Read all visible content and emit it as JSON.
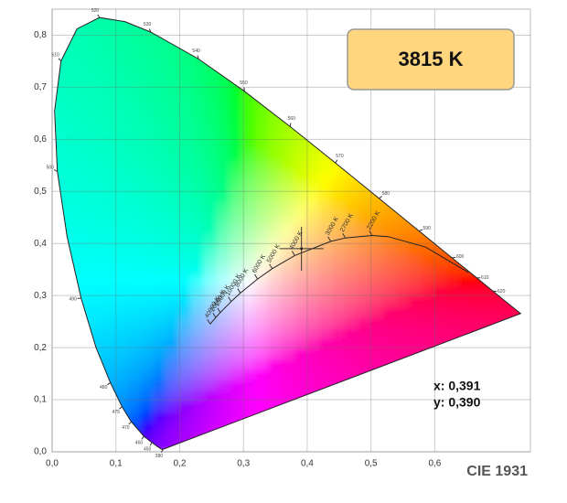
{
  "chart_data": {
    "type": "chromaticity",
    "title": "CIE 1931",
    "xlim": [
      0,
      0.75
    ],
    "ylim": [
      0,
      0.85
    ],
    "xticks": [
      {
        "value": 0,
        "label": "0,0"
      },
      {
        "value": 0.1,
        "label": "0,1"
      },
      {
        "value": 0.2,
        "label": "0,2"
      },
      {
        "value": 0.3,
        "label": "0,3"
      },
      {
        "value": 0.4,
        "label": "0,4"
      },
      {
        "value": 0.5,
        "label": "0,5"
      },
      {
        "value": 0.6,
        "label": "0,6"
      }
    ],
    "yticks": [
      {
        "value": 0,
        "label": "0,0"
      },
      {
        "value": 0.1,
        "label": "0,1"
      },
      {
        "value": 0.2,
        "label": "0,2"
      },
      {
        "value": 0.3,
        "label": "0,3"
      },
      {
        "value": 0.4,
        "label": "0,4"
      },
      {
        "value": 0.5,
        "label": "0,5"
      },
      {
        "value": 0.6,
        "label": "0,6"
      },
      {
        "value": 0.7,
        "label": "0,7"
      },
      {
        "value": 0.8,
        "label": "0,8"
      }
    ],
    "grid": true,
    "spectral_locus": {
      "x": [
        0.1741,
        0.1714,
        0.1644,
        0.1566,
        0.144,
        0.1241,
        0.1096,
        0.0913,
        0.0687,
        0.0454,
        0.0235,
        0.0082,
        0.0039,
        0.0139,
        0.0389,
        0.0743,
        0.1142,
        0.1547,
        0.2296,
        0.3016,
        0.3731,
        0.4441,
        0.5125,
        0.5752,
        0.627,
        0.6658,
        0.6915,
        0.719,
        0.7347
      ],
      "y": [
        0.005,
        0.0051,
        0.0109,
        0.0177,
        0.0297,
        0.0578,
        0.0868,
        0.1327,
        0.2007,
        0.295,
        0.4127,
        0.5384,
        0.6548,
        0.7502,
        0.812,
        0.8338,
        0.8262,
        0.8059,
        0.7543,
        0.6923,
        0.6245,
        0.5547,
        0.4866,
        0.4242,
        0.3725,
        0.334,
        0.3083,
        0.2809,
        0.2653
      ],
      "labels": [
        380,
        null,
        null,
        450,
        460,
        470,
        475,
        480,
        null,
        490,
        null,
        500,
        null,
        510,
        null,
        520,
        null,
        530,
        540,
        550,
        560,
        570,
        580,
        590,
        600,
        610,
        620,
        null,
        null
      ]
    },
    "planckian_locus": {
      "x": [
        0.6528,
        0.5857,
        0.5267,
        0.5018,
        0.4599,
        0.4369,
        0.3805,
        0.3451,
        0.3221,
        0.2952,
        0.2807,
        0.2637,
        0.2565,
        0.2478
      ],
      "y": [
        0.3444,
        0.3931,
        0.4133,
        0.4153,
        0.4106,
        0.4041,
        0.3768,
        0.3516,
        0.3318,
        0.3048,
        0.2884,
        0.2674,
        0.2577,
        0.2454
      ],
      "labels": [
        null,
        null,
        null,
        "2200 K",
        "2700 K",
        "3000 K",
        "4000 K",
        "5000 K",
        "6000 K",
        "8000 K",
        "10000 K",
        "15000 K",
        "20000 K",
        "40000 K"
      ]
    },
    "point": {
      "x": 0.391,
      "y": 0.39,
      "label": "3815 K",
      "x_label": "x: 0,391",
      "y_label": "y: 0,390"
    }
  }
}
